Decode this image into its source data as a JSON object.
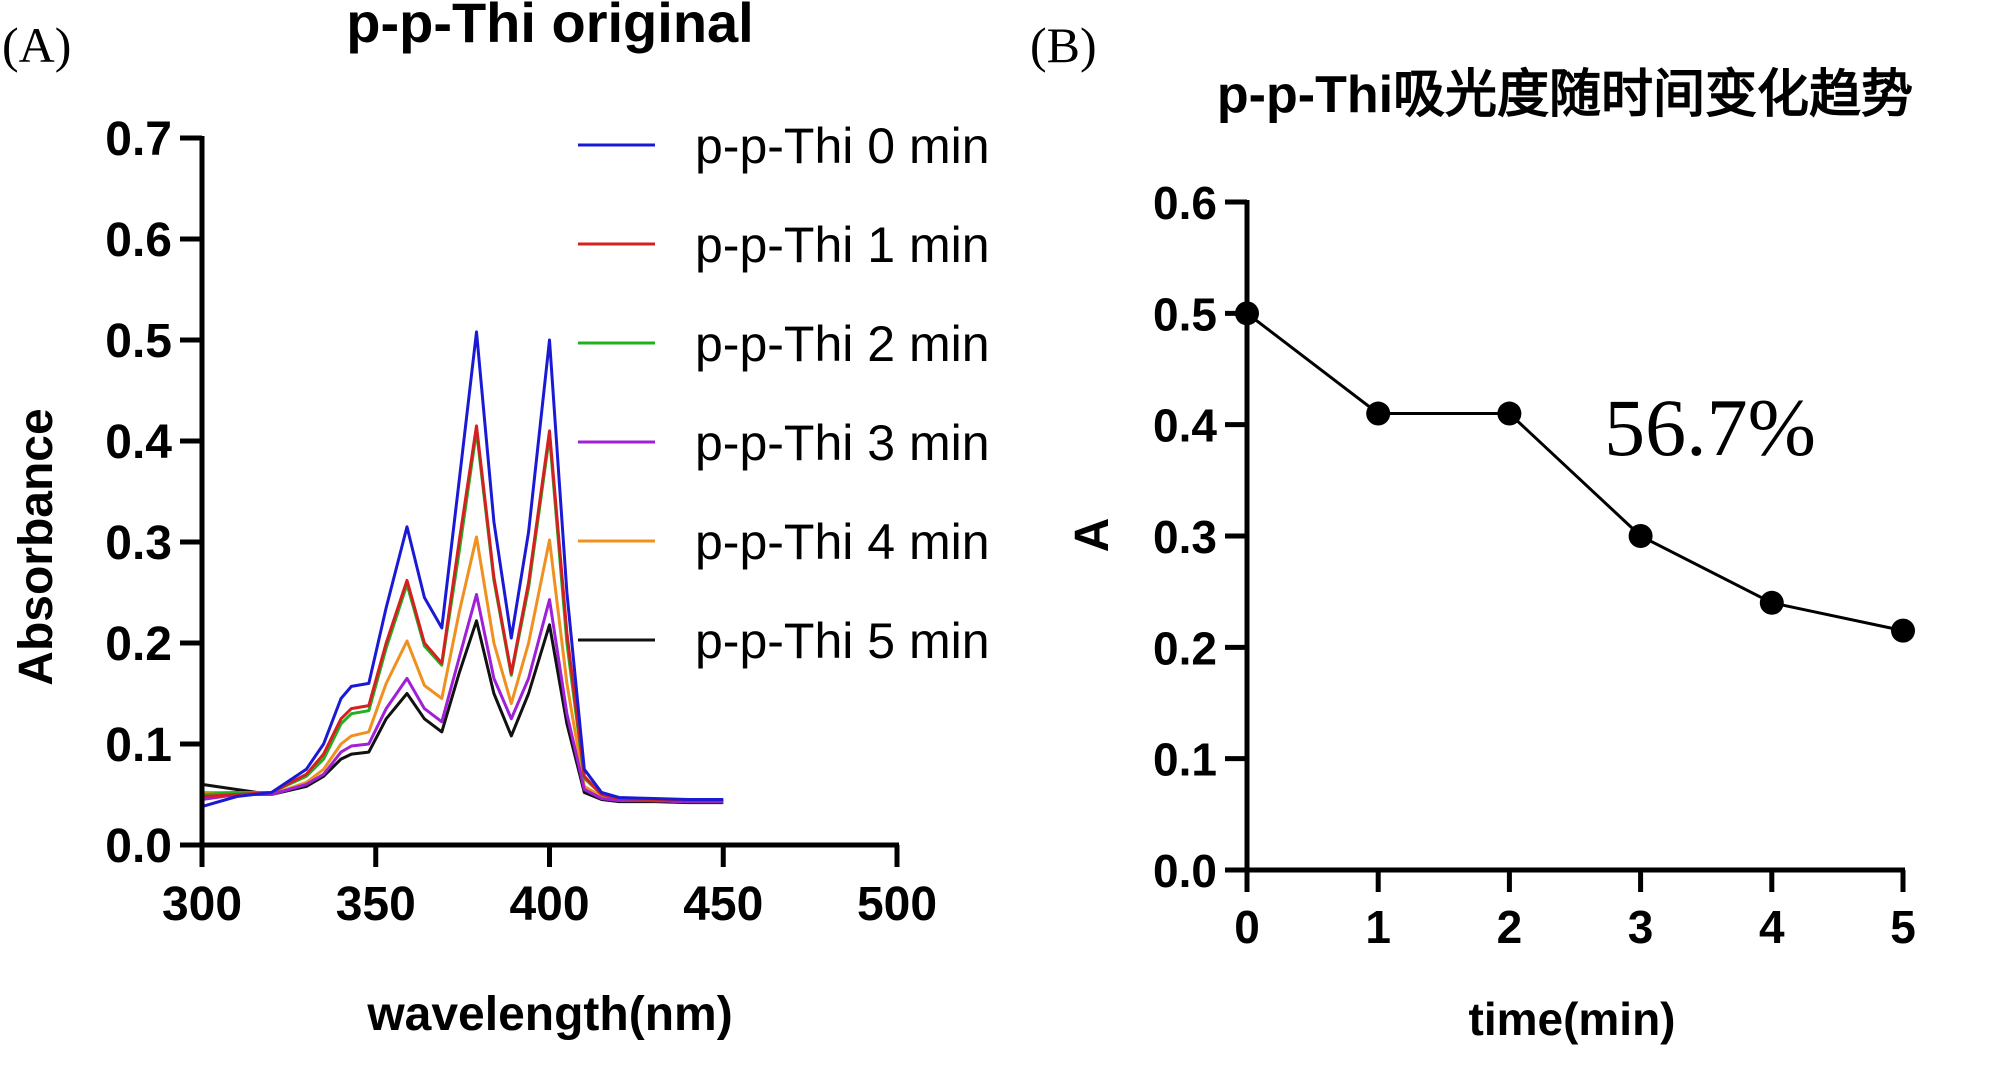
{
  "chart_data": [
    {
      "panel_label": "(A)",
      "type": "line",
      "title": "p-p-Thi original",
      "xlabel": "wavelength(nm)",
      "ylabel": "Absorbance",
      "xlim": [
        300,
        500
      ],
      "ylim": [
        0.0,
        0.7
      ],
      "xticks": [
        "300",
        "350",
        "400",
        "450",
        "500"
      ],
      "yticks": [
        "0.0",
        "0.1",
        "0.2",
        "0.3",
        "0.4",
        "0.5",
        "0.6",
        "0.7"
      ],
      "legend_position": "top-right",
      "x": [
        300,
        310,
        320,
        330,
        335,
        340,
        343,
        348,
        353,
        359,
        364,
        369,
        374,
        379,
        384,
        389,
        394,
        400,
        405,
        410,
        415,
        420,
        430,
        440,
        450
      ],
      "series": [
        {
          "name": "p-p-Thi 0 min",
          "color": "#1a1ad6",
          "values": [
            0.038,
            0.048,
            0.052,
            0.075,
            0.1,
            0.145,
            0.157,
            0.16,
            0.235,
            0.315,
            0.245,
            0.215,
            0.36,
            0.508,
            0.32,
            0.205,
            0.31,
            0.5,
            0.25,
            0.075,
            0.052,
            0.047,
            0.046,
            0.045,
            0.045
          ]
        },
        {
          "name": "p-p-Thi 1 min",
          "color": "#d42020",
          "values": [
            0.048,
            0.05,
            0.052,
            0.07,
            0.09,
            0.125,
            0.135,
            0.138,
            0.2,
            0.262,
            0.2,
            0.18,
            0.3,
            0.415,
            0.265,
            0.17,
            0.26,
            0.41,
            0.21,
            0.068,
            0.05,
            0.046,
            0.045,
            0.044,
            0.044
          ]
        },
        {
          "name": "p-p-Thi 2 min",
          "color": "#20b020",
          "values": [
            0.05,
            0.052,
            0.052,
            0.068,
            0.085,
            0.12,
            0.13,
            0.133,
            0.195,
            0.258,
            0.197,
            0.178,
            0.29,
            0.41,
            0.262,
            0.168,
            0.255,
            0.405,
            0.2,
            0.066,
            0.05,
            0.046,
            0.045,
            0.044,
            0.044
          ]
        },
        {
          "name": "p-p-Thi 3 min",
          "color": "#a020d8",
          "values": [
            0.045,
            0.05,
            0.05,
            0.06,
            0.07,
            0.092,
            0.098,
            0.1,
            0.135,
            0.165,
            0.135,
            0.122,
            0.185,
            0.248,
            0.165,
            0.125,
            0.165,
            0.243,
            0.13,
            0.055,
            0.046,
            0.044,
            0.044,
            0.043,
            0.043
          ]
        },
        {
          "name": "p-p-Thi 4 min",
          "color": "#f09020",
          "values": [
            0.052,
            0.052,
            0.05,
            0.062,
            0.075,
            0.1,
            0.108,
            0.112,
            0.16,
            0.202,
            0.158,
            0.145,
            0.23,
            0.305,
            0.2,
            0.14,
            0.2,
            0.302,
            0.16,
            0.058,
            0.048,
            0.045,
            0.044,
            0.043,
            0.043
          ]
        },
        {
          "name": "p-p-Thi 5 min",
          "color": "#111111",
          "values": [
            0.06,
            0.055,
            0.05,
            0.058,
            0.068,
            0.085,
            0.09,
            0.092,
            0.125,
            0.15,
            0.125,
            0.112,
            0.17,
            0.222,
            0.15,
            0.108,
            0.15,
            0.218,
            0.12,
            0.052,
            0.045,
            0.043,
            0.043,
            0.042,
            0.042
          ]
        }
      ]
    },
    {
      "panel_label": "(B)",
      "type": "line",
      "title": "p-p-Thi吸光度随时间变化趋势",
      "xlabel": "time(min)",
      "ylabel": "A",
      "xlim": [
        0,
        5
      ],
      "ylim": [
        0.0,
        0.6
      ],
      "xticks": [
        "0",
        "1",
        "2",
        "3",
        "4",
        "5"
      ],
      "yticks": [
        "0.0",
        "0.1",
        "0.2",
        "0.3",
        "0.4",
        "0.5",
        "0.6"
      ],
      "annotation": "56.7%",
      "x": [
        0,
        1,
        2,
        3,
        4,
        5
      ],
      "values": [
        0.5,
        0.41,
        0.41,
        0.3,
        0.24,
        0.215
      ],
      "color": "#000000"
    }
  ]
}
